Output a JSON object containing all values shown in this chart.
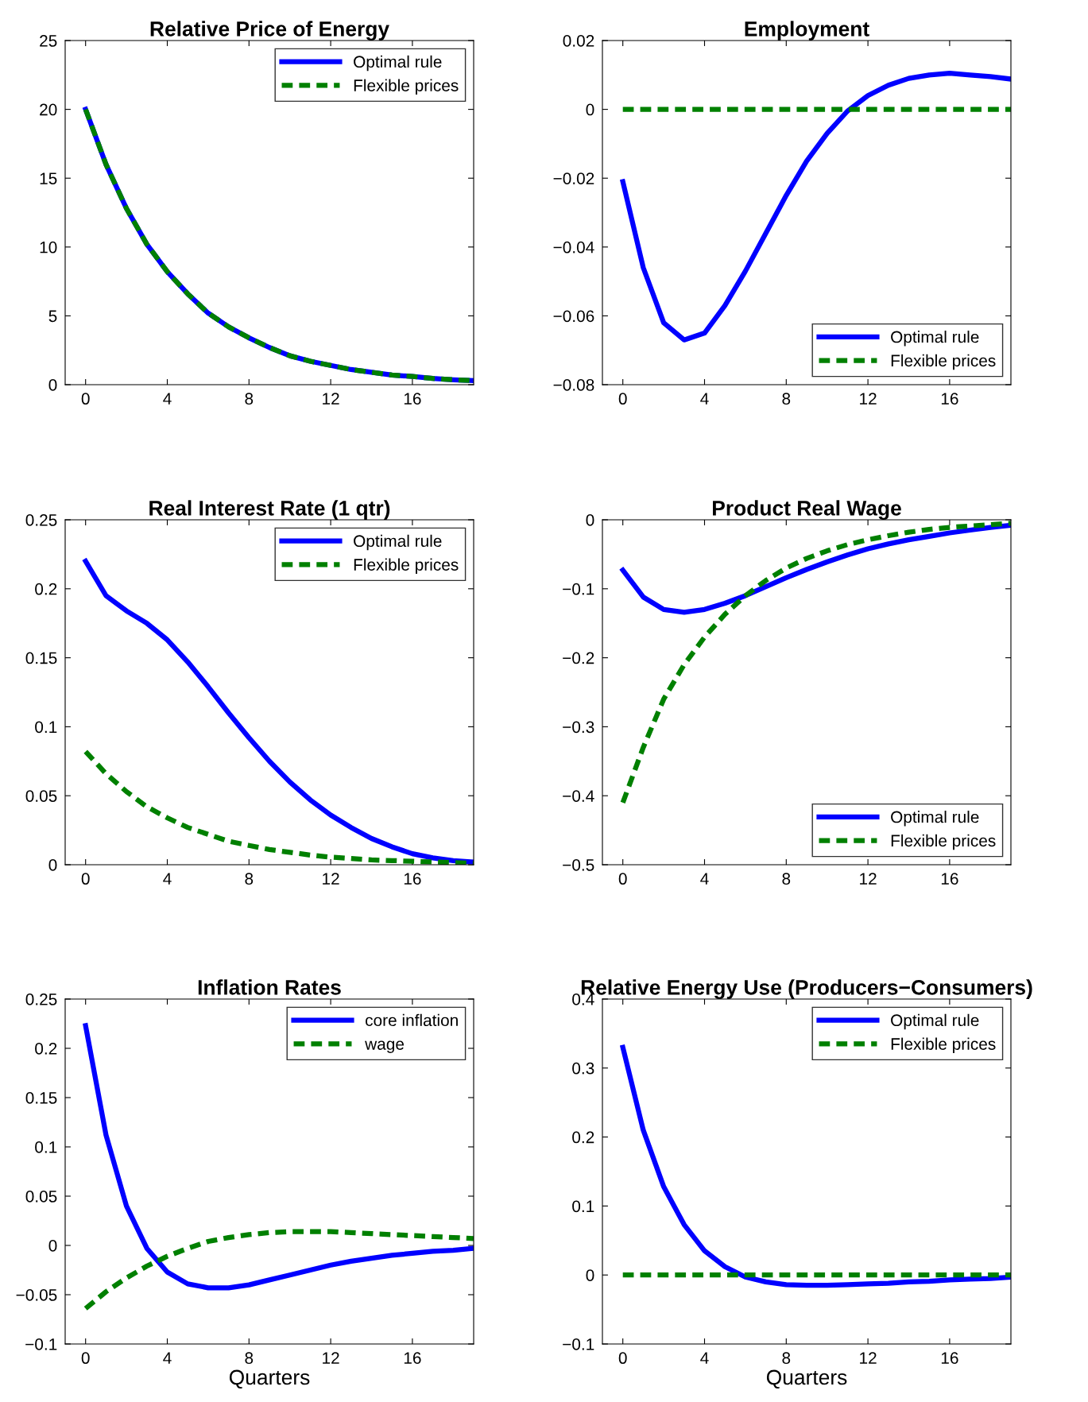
{
  "chart_data": [
    {
      "type": "line",
      "title": "Relative Price of Energy",
      "x": [
        0,
        1,
        2,
        3,
        4,
        5,
        6,
        7,
        8,
        9,
        10,
        11,
        12,
        13,
        14,
        15,
        16,
        17,
        18,
        19
      ],
      "xlim": [
        -1,
        19
      ],
      "xticks": [
        0,
        4,
        8,
        12,
        16
      ],
      "ylim": [
        0,
        25
      ],
      "yticks": [
        0,
        5,
        10,
        15,
        20,
        25
      ],
      "legend": "top right",
      "grid": false,
      "series": [
        {
          "name": "Optimal rule",
          "color": "#0000ff",
          "line_style": "solid",
          "values": [
            20,
            16,
            12.8,
            10.2,
            8.2,
            6.6,
            5.2,
            4.2,
            3.4,
            2.7,
            2.1,
            1.7,
            1.4,
            1.1,
            0.9,
            0.7,
            0.6,
            0.45,
            0.36,
            0.29
          ]
        },
        {
          "name": "Flexible prices",
          "color": "#008000",
          "line_style": "dashed",
          "values": [
            20,
            16,
            12.8,
            10.2,
            8.2,
            6.6,
            5.2,
            4.2,
            3.4,
            2.7,
            2.1,
            1.7,
            1.4,
            1.1,
            0.9,
            0.7,
            0.6,
            0.45,
            0.36,
            0.29
          ]
        }
      ]
    },
    {
      "type": "line",
      "title": "Employment",
      "x": [
        0,
        1,
        2,
        3,
        4,
        5,
        6,
        7,
        8,
        9,
        10,
        11,
        12,
        13,
        14,
        15,
        16,
        17,
        18,
        19
      ],
      "xlim": [
        -1,
        19
      ],
      "xticks": [
        0,
        4,
        8,
        12,
        16
      ],
      "ylim": [
        -0.08,
        0.02
      ],
      "yticks": [
        {
          "value": -0.08,
          "label": "−0.08"
        },
        {
          "value": -0.06,
          "label": "−0.06"
        },
        {
          "value": -0.04,
          "label": "−0.04"
        },
        {
          "value": -0.02,
          "label": "−0.02"
        },
        0,
        0.02
      ],
      "legend": "bottom right",
      "grid": false,
      "series": [
        {
          "name": "Optimal rule",
          "color": "#0000ff",
          "line_style": "solid",
          "values": [
            -0.021,
            -0.046,
            -0.062,
            -0.067,
            -0.065,
            -0.057,
            -0.047,
            -0.036,
            -0.025,
            -0.015,
            -0.007,
            -0.0005,
            0.004,
            0.007,
            0.009,
            0.01,
            0.0105,
            0.01,
            0.0095,
            0.0088
          ]
        },
        {
          "name": "Flexible prices",
          "color": "#008000",
          "line_style": "dashed",
          "values": [
            0,
            0,
            0,
            0,
            0,
            0,
            0,
            0,
            0,
            0,
            0,
            0,
            0,
            0,
            0,
            0,
            0,
            0,
            0,
            0
          ]
        }
      ]
    },
    {
      "type": "line",
      "title": "Real Interest Rate (1 qtr)",
      "x": [
        0,
        1,
        2,
        3,
        4,
        5,
        6,
        7,
        8,
        9,
        10,
        11,
        12,
        13,
        14,
        15,
        16,
        17,
        18,
        19
      ],
      "xlim": [
        -1,
        19
      ],
      "xticks": [
        0,
        4,
        8,
        12,
        16
      ],
      "ylim": [
        0,
        0.25
      ],
      "yticks": [
        0,
        0.05,
        0.1,
        0.15,
        0.2,
        0.25
      ],
      "legend": "top right",
      "grid": false,
      "series": [
        {
          "name": "Optimal rule",
          "color": "#0000ff",
          "line_style": "solid",
          "values": [
            0.22,
            0.195,
            0.184,
            0.175,
            0.163,
            0.147,
            0.129,
            0.11,
            0.092,
            0.075,
            0.06,
            0.047,
            0.036,
            0.027,
            0.019,
            0.013,
            0.008,
            0.005,
            0.003,
            0.002
          ]
        },
        {
          "name": "Flexible prices",
          "color": "#008000",
          "line_style": "dashed",
          "values": [
            0.082,
            0.066,
            0.053,
            0.042,
            0.034,
            0.027,
            0.022,
            0.017,
            0.014,
            0.011,
            0.009,
            0.007,
            0.0055,
            0.0045,
            0.0035,
            0.003,
            0.0025,
            0.002,
            0.0015,
            0.001
          ]
        }
      ]
    },
    {
      "type": "line",
      "title": "Product Real Wage",
      "x": [
        0,
        1,
        2,
        3,
        4,
        5,
        6,
        7,
        8,
        9,
        10,
        11,
        12,
        13,
        14,
        15,
        16,
        17,
        18,
        19
      ],
      "xlim": [
        -1,
        19
      ],
      "xticks": [
        0,
        4,
        8,
        12,
        16
      ],
      "ylim": [
        -0.5,
        0
      ],
      "yticks": [
        {
          "value": -0.5,
          "label": "−0.5"
        },
        {
          "value": -0.4,
          "label": "−0.4"
        },
        {
          "value": -0.3,
          "label": "−0.3"
        },
        {
          "value": -0.2,
          "label": "−0.2"
        },
        {
          "value": -0.1,
          "label": "−0.1"
        },
        0
      ],
      "legend": "bottom right",
      "grid": false,
      "series": [
        {
          "name": "Optimal rule",
          "color": "#0000ff",
          "line_style": "solid",
          "values": [
            -0.073,
            -0.112,
            -0.13,
            -0.134,
            -0.13,
            -0.121,
            -0.11,
            -0.097,
            -0.084,
            -0.072,
            -0.061,
            -0.051,
            -0.042,
            -0.035,
            -0.029,
            -0.024,
            -0.019,
            -0.015,
            -0.011,
            -0.008
          ]
        },
        {
          "name": "Flexible prices",
          "color": "#008000",
          "line_style": "dashed",
          "values": [
            -0.41,
            -0.33,
            -0.26,
            -0.21,
            -0.17,
            -0.137,
            -0.11,
            -0.088,
            -0.07,
            -0.056,
            -0.045,
            -0.036,
            -0.029,
            -0.023,
            -0.018,
            -0.014,
            -0.011,
            -0.009,
            -0.007,
            -0.005
          ]
        }
      ]
    },
    {
      "type": "line",
      "title": "Inflation Rates",
      "xlabel": "Quarters",
      "x": [
        0,
        1,
        2,
        3,
        4,
        5,
        6,
        7,
        8,
        9,
        10,
        11,
        12,
        13,
        14,
        15,
        16,
        17,
        18,
        19
      ],
      "xlim": [
        -1,
        19
      ],
      "xticks": [
        0,
        4,
        8,
        12,
        16
      ],
      "ylim": [
        -0.1,
        0.25
      ],
      "yticks": [
        {
          "value": -0.1,
          "label": "−0.1"
        },
        {
          "value": -0.05,
          "label": "−0.05"
        },
        0,
        0.05,
        0.1,
        0.15,
        0.2,
        0.25
      ],
      "legend": "top right",
      "grid": false,
      "series": [
        {
          "name": "core inflation",
          "color": "#0000ff",
          "line_style": "solid",
          "values": [
            0.223,
            0.112,
            0.04,
            -0.003,
            -0.027,
            -0.039,
            -0.043,
            -0.043,
            -0.04,
            -0.035,
            -0.03,
            -0.025,
            -0.02,
            -0.016,
            -0.013,
            -0.01,
            -0.008,
            -0.006,
            -0.005,
            -0.003
          ]
        },
        {
          "name": "wage",
          "color": "#008000",
          "line_style": "dashed",
          "values": [
            -0.064,
            -0.047,
            -0.033,
            -0.021,
            -0.011,
            -0.003,
            0.004,
            0.008,
            0.011,
            0.013,
            0.014,
            0.014,
            0.014,
            0.013,
            0.012,
            0.011,
            0.01,
            0.009,
            0.008,
            0.007
          ]
        }
      ]
    },
    {
      "type": "line",
      "title": "Relative Energy Use (Producers−Consumers)",
      "xlabel": "Quarters",
      "x": [
        0,
        1,
        2,
        3,
        4,
        5,
        6,
        7,
        8,
        9,
        10,
        11,
        12,
        13,
        14,
        15,
        16,
        17,
        18,
        19
      ],
      "xlim": [
        -1,
        19
      ],
      "xticks": [
        0,
        4,
        8,
        12,
        16
      ],
      "ylim": [
        -0.1,
        0.4
      ],
      "yticks": [
        {
          "value": -0.1,
          "label": "−0.1"
        },
        0,
        0.1,
        0.2,
        0.3,
        0.4
      ],
      "legend": "top right",
      "grid": false,
      "series": [
        {
          "name": "Optimal rule",
          "color": "#0000ff",
          "line_style": "solid",
          "values": [
            0.33,
            0.21,
            0.128,
            0.073,
            0.035,
            0.012,
            -0.003,
            -0.01,
            -0.014,
            -0.015,
            -0.015,
            -0.014,
            -0.013,
            -0.012,
            -0.01,
            -0.009,
            -0.007,
            -0.006,
            -0.005,
            -0.003
          ]
        },
        {
          "name": "Flexible prices",
          "color": "#008000",
          "line_style": "dashed",
          "values": [
            0,
            0,
            0,
            0,
            0,
            0,
            0,
            0,
            0,
            0,
            0,
            0,
            0,
            0,
            0,
            0,
            0,
            0,
            0,
            0
          ]
        }
      ]
    }
  ]
}
